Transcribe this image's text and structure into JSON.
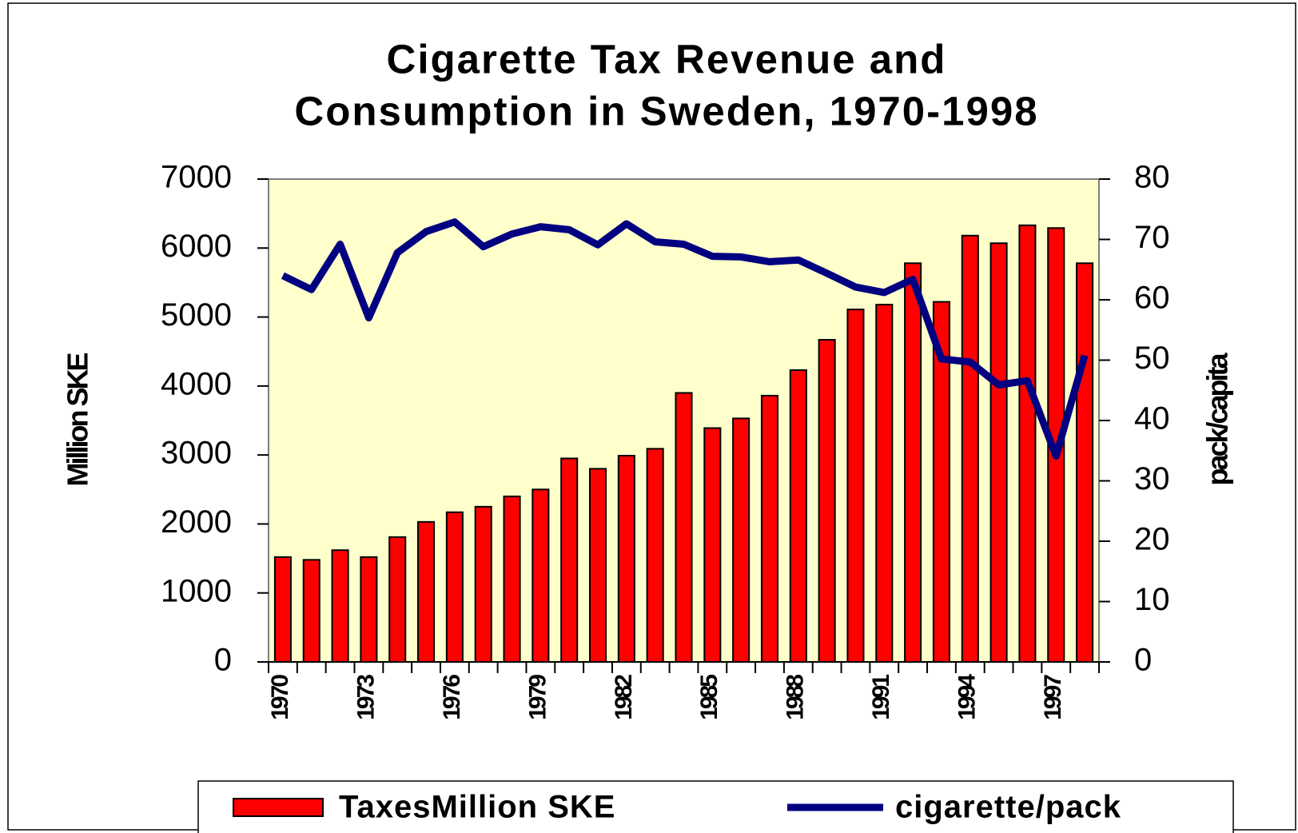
{
  "chart_data": {
    "type": "bar",
    "title": [
      "Cigarette Tax Revenue and",
      "Consumption in Sweden, 1970-1998"
    ],
    "ylabel": "Million SKE",
    "y2label": "pack/capita",
    "categories": [
      "1970",
      null,
      null,
      "1973",
      null,
      null,
      "1976",
      null,
      null,
      "1979",
      null,
      null,
      "1982",
      null,
      null,
      "1985",
      null,
      null,
      "1988",
      null,
      null,
      "1991",
      null,
      null,
      "1994",
      null,
      null,
      "1997",
      null
    ],
    "series": [
      {
        "name": "TaxesMillion SKE",
        "type": "bar",
        "color": "#ff0000",
        "values": [
          1520,
          1480,
          1620,
          1520,
          1810,
          2030,
          2170,
          2250,
          2400,
          2500,
          2950,
          2800,
          2990,
          3090,
          3900,
          3390,
          3530,
          3860,
          4230,
          4670,
          5110,
          5180,
          5780,
          5220,
          6180,
          6070,
          6330,
          6290,
          5780
        ]
      },
      {
        "name": "cigarette/pack",
        "type": "line",
        "color": "#000080",
        "axis": "y2",
        "values": [
          64,
          61.7,
          69.2,
          57,
          67.8,
          71.3,
          72.9,
          68.8,
          70.9,
          72.1,
          71.6,
          69.1,
          72.6,
          69.6,
          69.2,
          67.2,
          67.1,
          66.3,
          66.6,
          64.4,
          62.1,
          61.2,
          63.4,
          50.2,
          49.7,
          45.9,
          46.6,
          34.1,
          50.8
        ]
      }
    ],
    "ylim": [
      0,
      7000
    ],
    "yticks": [
      0,
      1000,
      2000,
      3000,
      4000,
      5000,
      6000,
      7000
    ],
    "y2lim": [
      0,
      80
    ],
    "y2ticks": [
      0,
      10,
      20,
      30,
      40,
      50,
      60,
      70,
      80
    ],
    "plot_background": "#ffffcc",
    "legend": "bottom"
  }
}
